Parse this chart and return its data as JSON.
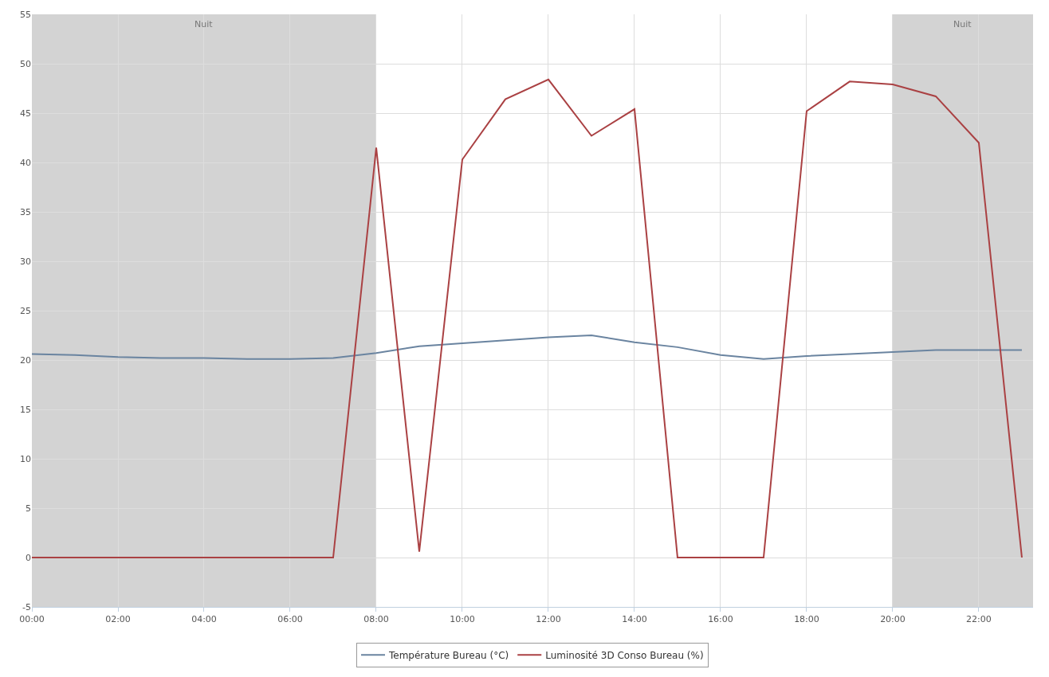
{
  "chart_data": {
    "type": "line",
    "x": [
      0,
      1,
      2,
      3,
      4,
      5,
      6,
      7,
      8,
      9,
      10,
      11,
      12,
      13,
      14,
      15,
      16,
      17,
      18,
      19,
      20,
      21,
      22,
      23
    ],
    "series": [
      {
        "name": "Température Bureau (°C)",
        "color": "#6a84a0",
        "values": [
          20.6,
          20.5,
          20.3,
          20.2,
          20.2,
          20.1,
          20.1,
          20.2,
          20.7,
          21.4,
          21.7,
          22.0,
          22.3,
          22.5,
          21.8,
          21.3,
          20.5,
          20.1,
          20.4,
          20.6,
          20.8,
          21.0,
          21.0,
          21.0
        ]
      },
      {
        "name": "Luminosité 3D Conso Bureau (%)",
        "color": "#aa4143",
        "values": [
          0,
          0,
          0,
          0,
          0,
          0,
          0,
          0,
          41.5,
          0.6,
          40.3,
          46.4,
          48.4,
          42.7,
          45.4,
          0,
          0,
          0,
          45.2,
          48.2,
          47.9,
          46.7,
          42.0,
          0
        ]
      }
    ],
    "xlim": [
      0,
      23.26
    ],
    "xticks": [
      {
        "value": 0,
        "label": "00:00"
      },
      {
        "value": 2,
        "label": "02:00"
      },
      {
        "value": 4,
        "label": "04:00"
      },
      {
        "value": 6,
        "label": "06:00"
      },
      {
        "value": 8,
        "label": "08:00"
      },
      {
        "value": 10,
        "label": "10:00"
      },
      {
        "value": 12,
        "label": "12:00"
      },
      {
        "value": 14,
        "label": "14:00"
      },
      {
        "value": 16,
        "label": "16:00"
      },
      {
        "value": 18,
        "label": "18:00"
      },
      {
        "value": 20,
        "label": "20:00"
      },
      {
        "value": 22,
        "label": "22:00"
      }
    ],
    "ylim": [
      -5,
      55
    ],
    "yticks": [
      -5,
      0,
      5,
      10,
      15,
      20,
      25,
      30,
      35,
      40,
      45,
      50,
      55
    ],
    "bands": [
      {
        "axis": "x",
        "from": 0,
        "to": 8,
        "label": "Nuit",
        "color": "#d3d3d3"
      },
      {
        "axis": "x",
        "from": 20,
        "to": 23.26,
        "label": "Nuit",
        "color": "#d3d3d3"
      }
    ],
    "grid": true,
    "legend": "bottom",
    "marker": "none",
    "line_style": "solid"
  }
}
